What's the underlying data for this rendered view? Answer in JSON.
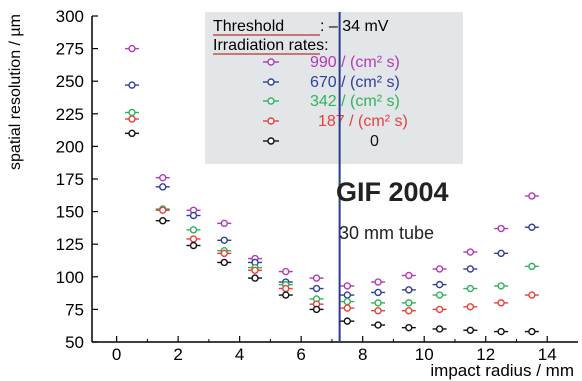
{
  "colors": {
    "series_990": "#b13bb5",
    "series_670": "#2f3f9c",
    "series_342": "#2fb35a",
    "series_187": "#e8403b",
    "series_0": "#111111",
    "legend_bg": "#e3e6e9",
    "threshold_line": "#2a3a8f",
    "underline": "#c0504d"
  },
  "chart_data": {
    "type": "scatter",
    "xlabel": "impact radius / mm",
    "ylabel": "spatial resolution / µm",
    "xlim": [
      -0.8,
      15
    ],
    "ylim": [
      50,
      300
    ],
    "xticks": [
      0,
      2,
      4,
      6,
      8,
      10,
      12,
      14
    ],
    "yticks": [
      50,
      75,
      100,
      125,
      150,
      175,
      200,
      225,
      250,
      275,
      300
    ],
    "x_tick_labels": [
      "0",
      "2",
      "4",
      "6",
      "8",
      "10",
      "12",
      "14"
    ],
    "y_tick_labels": [
      "50",
      "75",
      "100",
      "125",
      "150",
      "175",
      "200",
      "225",
      "250",
      "275",
      "300"
    ],
    "grid": false,
    "marker": "open-circle-with-horizontal-errorbar",
    "vertical_line_x": 7.25,
    "legend": {
      "threshold_label": "Threshold",
      "threshold_value": ": – 34 mV",
      "rates_title": "Irradiation rates:",
      "entries": [
        "990 / (cm² s)",
        "670 / (cm² s)",
        "342 / (cm² s)",
        "187 / (cm² s)",
        "0"
      ]
    },
    "annotation_title": "GIF 2004",
    "annotation_subtitle": "30 mm tube",
    "x": [
      0.5,
      1.5,
      2.5,
      3.5,
      4.5,
      5.5,
      6.5,
      7.5,
      8.5,
      9.5,
      10.5,
      11.5,
      12.5,
      13.5
    ],
    "series": [
      {
        "name": "990 / (cm² s)",
        "color_key": "series_990",
        "values": [
          275,
          176,
          151,
          141,
          114,
          104,
          99,
          93,
          96,
          101,
          106,
          119,
          137,
          162
        ]
      },
      {
        "name": "670 / (cm² s)",
        "color_key": "series_670",
        "values": [
          247,
          169,
          147,
          128,
          111,
          96,
          91,
          86,
          88,
          90,
          94,
          106,
          118,
          138
        ]
      },
      {
        "name": "342 / (cm² s)",
        "color_key": "series_342",
        "values": [
          226,
          152,
          136,
          120,
          107,
          94,
          83,
          81,
          80,
          80,
          86,
          91,
          93,
          108
        ]
      },
      {
        "name": "187 / (cm² s)",
        "color_key": "series_187",
        "values": [
          221,
          151,
          129,
          118,
          105,
          91,
          79,
          76,
          74,
          74,
          75,
          77,
          80,
          86
        ]
      },
      {
        "name": "0",
        "color_key": "series_0",
        "values": [
          210,
          143,
          124,
          111,
          99,
          86,
          75,
          66,
          63,
          61,
          60,
          59,
          58,
          58
        ]
      }
    ]
  }
}
